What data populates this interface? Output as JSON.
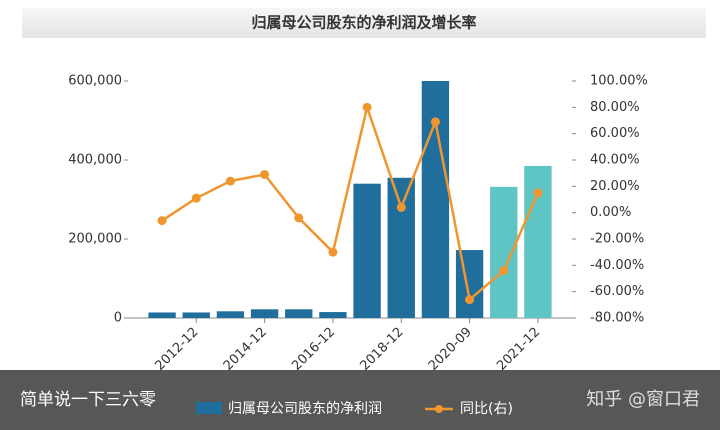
{
  "chart_data": {
    "type": "bar-line",
    "title": "归属母公司股东的净利润及增长率",
    "categories": [
      null,
      "2012-12",
      null,
      "2014-12",
      null,
      "2016-12",
      null,
      "2018-12",
      null,
      "2020-09",
      null,
      "2021-12"
    ],
    "series": [
      {
        "name": "归属母公司股东的净利润",
        "color": "#1f6e9c",
        "colors": [
          "#1f6e9c",
          "#1f6e9c",
          "#1f6e9c",
          "#1f6e9c",
          "#1f6e9c",
          "#1f6e9c",
          "#1f6e9c",
          "#1f6e9c",
          "#1f6e9c",
          "#1f6e9c",
          "#5ec4c4",
          "#5ec4c4"
        ],
        "values": [
          14000,
          14000,
          17000,
          22000,
          22000,
          15000,
          340000,
          355000,
          600000,
          172000,
          332000,
          385000
        ]
      },
      {
        "name": "同比(右)",
        "color": "#f0962e",
        "axis": "y2",
        "values": [
          -6,
          11,
          24,
          29,
          -4,
          -30,
          80,
          4,
          69,
          -66,
          -44,
          15
        ]
      }
    ],
    "ylim": [
      0,
      600000
    ],
    "yticks": [
      0,
      {
        "value": 200000,
        "label": "200,000"
      },
      {
        "value": 400000,
        "label": "400,000"
      },
      {
        "value": 600000,
        "label": "600,000"
      }
    ],
    "y2lim": [
      -80,
      100
    ],
    "y2ticks": [
      {
        "value": -80,
        "label": "-80.00%"
      },
      {
        "value": -60,
        "label": "-60.00%"
      },
      {
        "value": -40,
        "label": "-40.00%"
      },
      {
        "value": -20,
        "label": "-20.00%"
      },
      {
        "value": 0,
        "label": "0.00%"
      },
      {
        "value": 20,
        "label": "20.00%"
      },
      {
        "value": 40,
        "label": "40.00%"
      },
      {
        "value": 60,
        "label": "60.00%"
      },
      {
        "value": 80,
        "label": "80.00%"
      },
      {
        "value": 100,
        "label": "100.00%"
      }
    ]
  },
  "caption": "简单说一下三六零",
  "watermark": "知乎 @窗口君"
}
